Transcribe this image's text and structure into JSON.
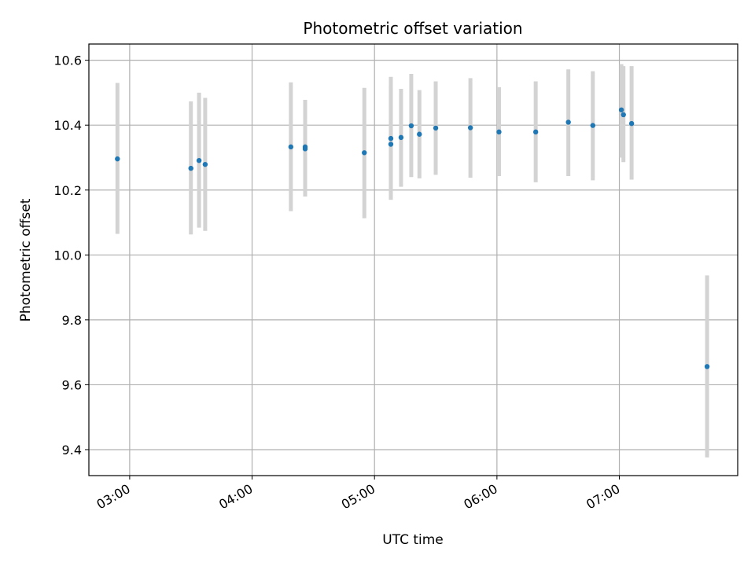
{
  "chart_data": {
    "type": "scatter",
    "title": "Photometric offset variation",
    "xlabel": "UTC time",
    "ylabel": "Photometric offset",
    "x_axis_kind": "time",
    "xlim": [
      "02:40",
      "07:58"
    ],
    "ylim": [
      9.32,
      10.65
    ],
    "x_ticks": [
      "03:00",
      "04:00",
      "05:00",
      "06:00",
      "07:00"
    ],
    "y_ticks": [
      9.4,
      9.6,
      9.8,
      10.0,
      10.2,
      10.4,
      10.6
    ],
    "y_tick_labels": [
      "9.4",
      "9.6",
      "9.8",
      "10.0",
      "10.2",
      "10.4",
      "10.6"
    ],
    "grid": true,
    "legend": "none",
    "colors": {
      "point": "#1f77b4",
      "errorbar": "#d3d3d3",
      "grid": "#b0b0b0"
    },
    "points": [
      {
        "time": "02:54",
        "y": 10.296,
        "y_low": 10.065,
        "y_high": 10.53
      },
      {
        "time": "03:30",
        "y": 10.267,
        "y_low": 10.063,
        "y_high": 10.473
      },
      {
        "time": "03:34",
        "y": 10.291,
        "y_low": 10.084,
        "y_high": 10.5
      },
      {
        "time": "03:37",
        "y": 10.279,
        "y_low": 10.074,
        "y_high": 10.484
      },
      {
        "time": "04:19",
        "y": 10.333,
        "y_low": 10.135,
        "y_high": 10.532
      },
      {
        "time": "04:26",
        "y": 10.333,
        "y_low": 10.18,
        "y_high": 10.478
      },
      {
        "time": "04:26",
        "y": 10.327,
        "y_low": 10.18,
        "y_high": 10.478
      },
      {
        "time": "04:55",
        "y": 10.315,
        "y_low": 10.113,
        "y_high": 10.515
      },
      {
        "time": "05:08",
        "y": 10.359,
        "y_low": 10.17,
        "y_high": 10.549
      },
      {
        "time": "05:08",
        "y": 10.341,
        "y_low": 10.17,
        "y_high": 10.52
      },
      {
        "time": "05:13",
        "y": 10.362,
        "y_low": 10.21,
        "y_high": 10.512
      },
      {
        "time": "05:18",
        "y": 10.398,
        "y_low": 10.24,
        "y_high": 10.558
      },
      {
        "time": "05:22",
        "y": 10.372,
        "y_low": 10.236,
        "y_high": 10.508
      },
      {
        "time": "05:30",
        "y": 10.391,
        "y_low": 10.247,
        "y_high": 10.535
      },
      {
        "time": "05:47",
        "y": 10.392,
        "y_low": 10.238,
        "y_high": 10.545
      },
      {
        "time": "06:01",
        "y": 10.379,
        "y_low": 10.243,
        "y_high": 10.517
      },
      {
        "time": "06:19",
        "y": 10.379,
        "y_low": 10.224,
        "y_high": 10.535
      },
      {
        "time": "06:35",
        "y": 10.409,
        "y_low": 10.243,
        "y_high": 10.572
      },
      {
        "time": "06:47",
        "y": 10.399,
        "y_low": 10.23,
        "y_high": 10.566
      },
      {
        "time": "07:01",
        "y": 10.447,
        "y_low": 10.3,
        "y_high": 10.588
      },
      {
        "time": "07:02",
        "y": 10.432,
        "y_low": 10.286,
        "y_high": 10.582
      },
      {
        "time": "07:06",
        "y": 10.405,
        "y_low": 10.232,
        "y_high": 10.582
      },
      {
        "time": "07:43",
        "y": 9.656,
        "y_low": 9.376,
        "y_high": 9.937
      }
    ]
  }
}
